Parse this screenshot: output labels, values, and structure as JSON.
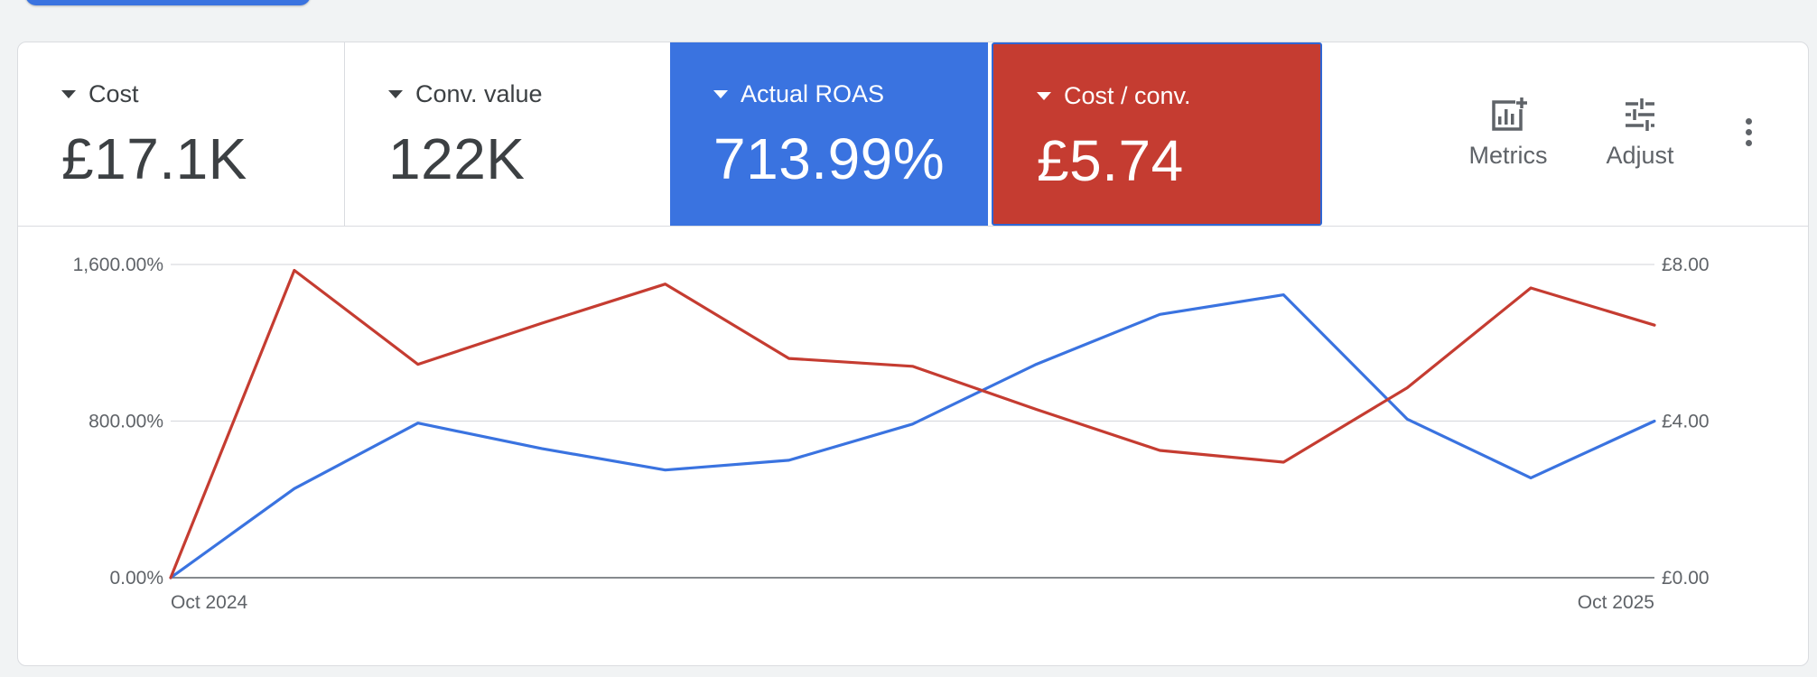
{
  "scorecards": [
    {
      "label": "Cost",
      "value": "£17.1K"
    },
    {
      "label": "Conv. value",
      "value": "122K"
    },
    {
      "label": "Actual ROAS",
      "value": "713.99%"
    },
    {
      "label": "Cost / conv.",
      "value": "£5.74"
    }
  ],
  "toolbar": {
    "metrics_label": "Metrics",
    "adjust_label": "Adjust"
  },
  "icons": {
    "metrics": "add-chart-icon",
    "adjust": "tune-sliders-icon",
    "more": "more-vert-icon"
  },
  "colors": {
    "roas": "#3a73e0",
    "cost_per_conv": "#c53c31",
    "grid": "#dadce0",
    "axis_text": "#5f6368"
  },
  "chart_data": {
    "type": "line",
    "x_start_label": "Oct 2024",
    "x_end_label": "Oct 2025",
    "y_left_ticks": [
      "0.00%",
      "800.00%",
      "1,600.00%"
    ],
    "y_right_ticks": [
      "£0.00",
      "£4.00",
      "£8.00"
    ],
    "y_left_range": [
      0,
      1600
    ],
    "y_right_range": [
      0,
      8
    ],
    "series": [
      {
        "metric": "Actual ROAS",
        "axis": "left",
        "color": "#3a73e0",
        "values": [
          0,
          455,
          790,
          660,
          550,
          600,
          785,
          1090,
          1345,
          1445,
          810,
          510,
          800
        ]
      },
      {
        "metric": "Cost / conv.",
        "axis": "right",
        "color": "#c53c31",
        "values": [
          0,
          7.85,
          5.45,
          6.5,
          7.5,
          5.6,
          5.4,
          4.3,
          3.25,
          2.95,
          4.85,
          7.4,
          6.45
        ]
      }
    ]
  }
}
